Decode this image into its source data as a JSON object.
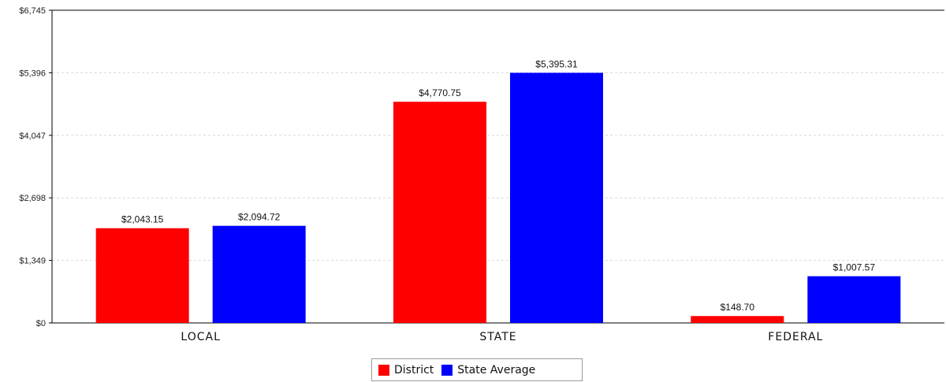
{
  "chart_data": {
    "type": "bar",
    "categories": [
      "LOCAL",
      "STATE",
      "FEDERAL"
    ],
    "series": [
      {
        "name": "District",
        "color": "#ff0000",
        "values": [
          2043.15,
          4770.75,
          148.7
        ],
        "labels": [
          "$2,043.15",
          "$4,770.75",
          "$148.70"
        ]
      },
      {
        "name": "State Average",
        "color": "#0000ff",
        "values": [
          2094.72,
          5395.31,
          1007.57
        ],
        "labels": [
          "$2,094.72",
          "$5,395.31",
          "$1,007.57"
        ]
      }
    ],
    "yticks": [
      0,
      1349,
      2698,
      4047,
      5396,
      6745
    ],
    "ytick_labels": [
      "$0",
      "$1,349",
      "$2,698",
      "$4,047",
      "$5,396",
      "$6,745"
    ],
    "ylim": [
      0,
      6745
    ],
    "grid": "horizontal-dashed",
    "legend_position": "bottom-center",
    "title": "",
    "xlabel": "",
    "ylabel": ""
  }
}
